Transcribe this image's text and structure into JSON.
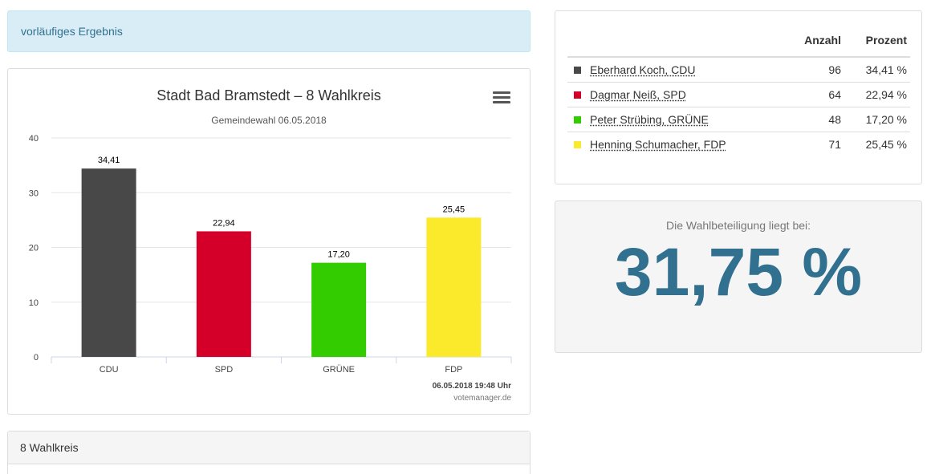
{
  "status": {
    "text": "vorläufiges Ergebnis"
  },
  "chart": {
    "title": "Stadt Bad Bramstedt – 8 Wahlkreis",
    "subtitle": "Gemeindewahl 06.05.2018",
    "credit_time": "06.05.2018 19:48 Uhr",
    "credit_source": "votemanager.de"
  },
  "chart_data": {
    "type": "bar",
    "title": "Stadt Bad Bramstedt – 8 Wahlkreis",
    "subtitle": "Gemeindewahl 06.05.2018",
    "categories": [
      "CDU",
      "SPD",
      "GRÜNE",
      "FDP"
    ],
    "values": [
      34.41,
      22.94,
      17.2,
      25.45
    ],
    "value_labels": [
      "34,41",
      "22,94",
      "17,20",
      "25,45"
    ],
    "colors": [
      "#484848",
      "#d5002a",
      "#33cc00",
      "#fbea2b"
    ],
    "yticks": [
      0,
      10,
      20,
      30,
      40
    ],
    "ylim": [
      0,
      40
    ],
    "grid": true,
    "legend": "none"
  },
  "results_table": {
    "headers": {
      "count": "Anzahl",
      "percent": "Prozent"
    },
    "rows": [
      {
        "candidate": "Eberhard Koch, CDU",
        "count": "96",
        "percent": "34,41 %",
        "color": "#484848"
      },
      {
        "candidate": "Dagmar Neiß, SPD",
        "count": "64",
        "percent": "22,94 %",
        "color": "#d5002a"
      },
      {
        "candidate": "Peter Strübing, GRÜNE",
        "count": "48",
        "percent": "17,20 %",
        "color": "#33cc00"
      },
      {
        "candidate": "Henning Schumacher, FDP",
        "count": "71",
        "percent": "25,45 %",
        "color": "#fbea2b"
      }
    ]
  },
  "turnout": {
    "label": "Die Wahlbeteiligung liegt bei:",
    "value": "31,75 %"
  },
  "district_panel": {
    "heading": "8 Wahlkreis"
  }
}
